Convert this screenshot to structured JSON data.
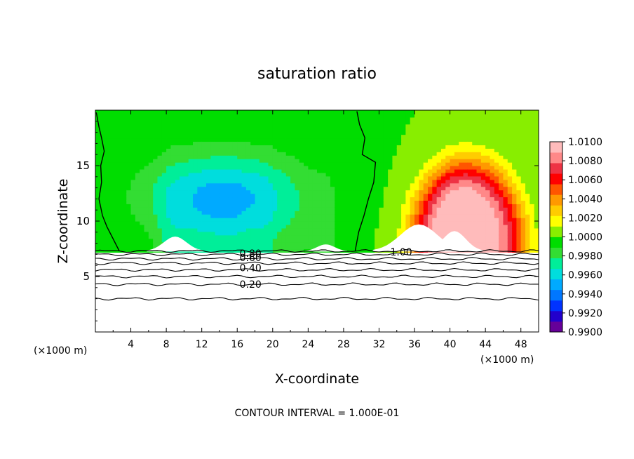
{
  "chart_data": {
    "type": "heatmap",
    "title": "saturation ratio",
    "xlabel": "X-coordinate",
    "ylabel": "Z-coordinate",
    "x_unit": "(×1000 m)",
    "z_unit": "(×1000 m)",
    "xlim": [
      0,
      50
    ],
    "ylim": [
      0,
      20
    ],
    "x_ticks": [
      4,
      8,
      12,
      16,
      20,
      24,
      28,
      32,
      36,
      40,
      44,
      48
    ],
    "y_ticks": [
      5,
      10,
      15
    ],
    "footer": "CONTOUR INTERVAL = 1.000E-01",
    "colorbar": {
      "labels": [
        "1.0100",
        "1.0080",
        "1.0060",
        "1.0040",
        "1.0020",
        "1.0000",
        "0.9980",
        "0.9960",
        "0.9940",
        "0.9920",
        "0.9900"
      ],
      "min": 0.99,
      "max": 1.01,
      "colors": [
        "#660099",
        "#2200cc",
        "#0033ff",
        "#0077ff",
        "#00aaff",
        "#00dddd",
        "#00ee99",
        "#33dd33",
        "#00dd00",
        "#88ee00",
        "#ffff00",
        "#ffcc00",
        "#ff9900",
        "#ff5500",
        "#ff0000",
        "#ee3344",
        "#ff8888",
        "#ffbbbb"
      ]
    },
    "contour_labels": [
      {
        "text": "0.80",
        "x": 17.5,
        "z": 7.1
      },
      {
        "text": "0.60",
        "x": 17.5,
        "z": 6.7
      },
      {
        "text": "0.40",
        "x": 17.5,
        "z": 5.8
      },
      {
        "text": "0.20",
        "x": 17.5,
        "z": 4.3
      },
      {
        "text": "1.00",
        "x": 34.5,
        "z": 7.2
      }
    ],
    "lower_contours_z": [
      7.0,
      6.6,
      6.2,
      5.6,
      5.0,
      4.3,
      3.0
    ],
    "cloud_base_z": 7.3
  }
}
